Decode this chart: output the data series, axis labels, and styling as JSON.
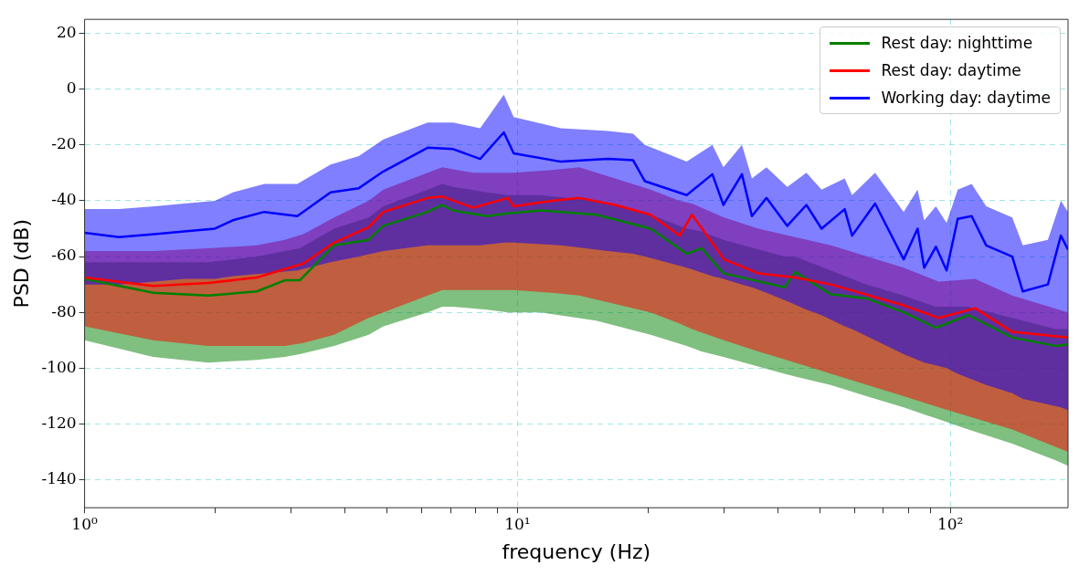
{
  "chart_data": {
    "type": "line",
    "xlabel": "frequency (Hz)",
    "ylabel": "PSD (dB)",
    "log": "x",
    "grid": true,
    "legend": "top right",
    "marker": "none",
    "line_style": "solid",
    "xlim": [
      1,
      187
    ],
    "ylim": [
      -150,
      25
    ],
    "xticks": [
      {
        "value": 1,
        "label": "10⁰"
      },
      {
        "value": 2,
        "label": null
      },
      {
        "value": 3,
        "label": null
      },
      {
        "value": 4,
        "label": null
      },
      {
        "value": 5,
        "label": null
      },
      {
        "value": 6,
        "label": null
      },
      {
        "value": 7,
        "label": null
      },
      {
        "value": 8,
        "label": null
      },
      {
        "value": 9,
        "label": null
      },
      {
        "value": 10,
        "label": "10¹"
      },
      {
        "value": 20,
        "label": null
      },
      {
        "value": 30,
        "label": null
      },
      {
        "value": 40,
        "label": null
      },
      {
        "value": 50,
        "label": null
      },
      {
        "value": 60,
        "label": null
      },
      {
        "value": 70,
        "label": null
      },
      {
        "value": 80,
        "label": null
      },
      {
        "value": 90,
        "label": null
      },
      {
        "value": 100,
        "label": "10²"
      }
    ],
    "yticks": [
      -140,
      -120,
      -100,
      -80,
      -60,
      -40,
      -20,
      0,
      20
    ],
    "series": [
      {
        "name": "Rest day: nighttime",
        "color": "#008000",
        "x": [
          1,
          1.44,
          1.93,
          2.5,
          2.9,
          3.14,
          3.77,
          4.53,
          4.9,
          6.2,
          6.7,
          7.1,
          8.5,
          9.5,
          11.3,
          15.2,
          20.3,
          24.6,
          26.6,
          29.9,
          41.4,
          43.8,
          52.9,
          64,
          78,
          92.6,
          110,
          139,
          175,
          187
        ],
        "values": [
          -68,
          -73,
          -74,
          -72.5,
          -68.5,
          -68.5,
          -56,
          -54,
          -49,
          -44,
          -41.5,
          -43.5,
          -45.5,
          -44.5,
          -43.5,
          -45,
          -50,
          -59,
          -57,
          -66,
          -71,
          -65.5,
          -73.5,
          -75,
          -80,
          -85.5,
          -81,
          -89,
          -92,
          -91.5
        ],
        "lower": [
          -90,
          -96,
          -98,
          -97,
          -96,
          -95,
          -92,
          -88,
          -85,
          -80,
          -78,
          -78,
          -79,
          -80,
          -80,
          -83,
          -88,
          -92,
          -94,
          -96,
          -102,
          -103,
          -106,
          -110,
          -114,
          -118,
          -122,
          -127,
          -133,
          -135
        ],
        "upper": [
          -62,
          -62,
          -62,
          -60,
          -58,
          -57,
          -50,
          -46,
          -42,
          -36,
          -34,
          -35,
          -37,
          -38,
          -38,
          -40,
          -45,
          -50,
          -51,
          -54,
          -60,
          -60,
          -65,
          -70,
          -74,
          -78,
          -78,
          -82,
          -86,
          -86
        ]
      },
      {
        "name": "Rest day: daytime",
        "color": "#ff0000",
        "x": [
          1,
          1.44,
          1.93,
          2.5,
          2.9,
          3.2,
          3.77,
          4.53,
          4.9,
          6.2,
          6.7,
          7.9,
          9.5,
          9.8,
          12,
          13.9,
          16.8,
          20.3,
          23.7,
          25.3,
          30,
          36,
          43.8,
          53,
          78,
          94,
          114,
          139,
          187
        ],
        "values": [
          -67.5,
          -70.5,
          -69.5,
          -67.5,
          -64.5,
          -62.5,
          -55,
          -49.5,
          -44,
          -39,
          -38.5,
          -42.5,
          -39,
          -42,
          -40,
          -39,
          -41.5,
          -45,
          -52.5,
          -45,
          -61,
          -66,
          -67.5,
          -70,
          -77.5,
          -82,
          -78.5,
          -87,
          -89
        ],
        "lower": [
          -85,
          -90,
          -92,
          -92,
          -92,
          -91,
          -88,
          -82,
          -80,
          -74,
          -72,
          -72,
          -72,
          -72,
          -73,
          -74,
          -77,
          -80,
          -84,
          -86,
          -90,
          -94,
          -98,
          -102,
          -110,
          -114,
          -118,
          -122,
          -130
        ],
        "upper": [
          -58,
          -58,
          -57,
          -56,
          -54,
          -52,
          -46,
          -40,
          -36,
          -30,
          -28,
          -30,
          -30,
          -30,
          -29,
          -28,
          -32,
          -36,
          -40,
          -41,
          -46,
          -50,
          -53,
          -56,
          -64,
          -69,
          -68,
          -74,
          -80
        ]
      },
      {
        "name": "Working day: daytime",
        "color": "#0000ff",
        "x": [
          1,
          1.2,
          1.45,
          1.7,
          2,
          2.2,
          2.6,
          3.1,
          3.7,
          4.3,
          4.9,
          6.2,
          7.1,
          8.2,
          9.3,
          9.8,
          12.6,
          16.2,
          18.5,
          19.7,
          24.6,
          28.2,
          29.9,
          33,
          34.8,
          37.6,
          42,
          46.5,
          50.4,
          57,
          59.3,
          67,
          78,
          84,
          87,
          92.6,
          98,
          104,
          112,
          121,
          139,
          147,
          168,
          180,
          187
        ],
        "values": [
          -51.5,
          -53,
          -52,
          -51,
          -50,
          -47,
          -44,
          -45.5,
          -37,
          -35.5,
          -29.5,
          -21,
          -21.5,
          -25,
          -15.5,
          -23,
          -26,
          -25,
          -25.5,
          -33,
          -38,
          -30.5,
          -41.5,
          -30.5,
          -45.5,
          -39,
          -49,
          -41.5,
          -50,
          -43,
          -52.5,
          -41,
          -61,
          -50,
          -64,
          -56.5,
          -65,
          -46.5,
          -45.5,
          -56,
          -60,
          -72.5,
          -70,
          -52.5,
          -57.5
        ],
        "lower": [
          -70,
          -70,
          -69,
          -68,
          -68,
          -67,
          -66,
          -65,
          -62,
          -60,
          -58,
          -56,
          -56,
          -56,
          -55,
          -55,
          -56,
          -58,
          -59,
          -60,
          -64,
          -67,
          -68,
          -70,
          -71,
          -73,
          -76,
          -79,
          -81,
          -85,
          -86,
          -90,
          -95,
          -97,
          -98,
          -99,
          -100,
          -102,
          -104,
          -106,
          -109,
          -111,
          -113,
          -114,
          -115
        ],
        "upper": [
          -43,
          -43,
          -42,
          -41,
          -40,
          -37,
          -34,
          -34,
          -27,
          -24,
          -18,
          -12,
          -12,
          -14,
          -2,
          -10,
          -14,
          -15,
          -16,
          -20,
          -26,
          -20,
          -28,
          -20,
          -32,
          -28,
          -35,
          -30,
          -36,
          -32,
          -38,
          -30,
          -44,
          -36,
          -47,
          -42,
          -48,
          -36,
          -34,
          -42,
          -46,
          -56,
          -54,
          -40,
          -44
        ]
      }
    ]
  }
}
